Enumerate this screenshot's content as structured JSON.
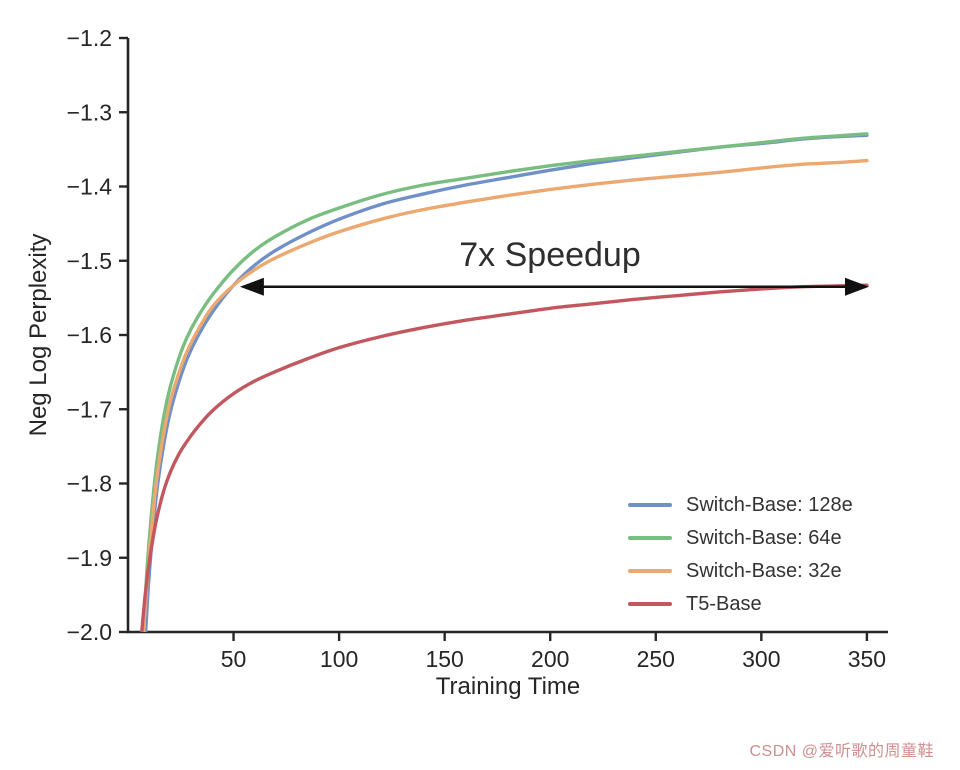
{
  "chart_data": {
    "type": "line",
    "title": "",
    "xlabel": "Training Time",
    "ylabel": "Neg Log Perplexity",
    "xlim": [
      0,
      360
    ],
    "ylim": [
      -2.0,
      -1.2
    ],
    "grid": false,
    "legend_position": "lower right",
    "x_ticks": {
      "values": [
        50,
        100,
        150,
        200,
        250,
        300,
        350
      ],
      "labels": [
        "50",
        "100",
        "150",
        "200",
        "250",
        "300",
        "350"
      ]
    },
    "y_ticks": {
      "values": [
        -1.2,
        -1.3,
        -1.4,
        -1.5,
        -1.6,
        -1.7,
        -1.8,
        -1.9,
        -2.0
      ],
      "labels": [
        "−1.2",
        "−1.3",
        "−1.4",
        "−1.5",
        "−1.6",
        "−1.7",
        "−1.8",
        "−1.9",
        "−2.0"
      ]
    },
    "series": [
      {
        "key": "switch-base-128e",
        "name": "Switch-Base: 128e",
        "color": "#7090c8",
        "x": [
          8,
          9,
          10,
          12,
          14,
          17,
          20,
          24,
          28,
          33,
          40,
          50,
          60,
          70,
          85,
          100,
          120,
          140,
          160,
          180,
          200,
          220,
          240,
          260,
          280,
          300,
          320,
          335,
          350
        ],
        "y": [
          -2.02,
          -1.968,
          -1.924,
          -1.856,
          -1.802,
          -1.746,
          -1.704,
          -1.664,
          -1.632,
          -1.602,
          -1.569,
          -1.533,
          -1.506,
          -1.486,
          -1.463,
          -1.444,
          -1.424,
          -1.41,
          -1.398,
          -1.388,
          -1.378,
          -1.369,
          -1.361,
          -1.354,
          -1.347,
          -1.342,
          -1.336,
          -1.333,
          -1.331
        ]
      },
      {
        "key": "switch-base-64e",
        "name": "Switch-Base: 64e",
        "color": "#7abd80",
        "x": [
          7,
          8,
          9,
          10,
          12,
          14,
          17,
          20,
          24,
          28,
          33,
          40,
          50,
          60,
          70,
          85,
          100,
          120,
          140,
          160,
          180,
          200,
          220,
          240,
          260,
          280,
          300,
          320,
          335,
          350
        ],
        "y": [
          -2.02,
          -1.962,
          -1.916,
          -1.878,
          -1.814,
          -1.764,
          -1.709,
          -1.67,
          -1.632,
          -1.603,
          -1.576,
          -1.546,
          -1.512,
          -1.486,
          -1.467,
          -1.445,
          -1.429,
          -1.411,
          -1.398,
          -1.389,
          -1.38,
          -1.372,
          -1.365,
          -1.359,
          -1.353,
          -1.347,
          -1.341,
          -1.335,
          -1.332,
          -1.329
        ]
      },
      {
        "key": "switch-base-32e",
        "name": "Switch-Base: 32e",
        "color": "#eca86f",
        "x": [
          7,
          8,
          9,
          10,
          12,
          14,
          17,
          20,
          24,
          28,
          33,
          40,
          50,
          60,
          70,
          85,
          100,
          120,
          140,
          160,
          180,
          200,
          220,
          240,
          260,
          280,
          300,
          320,
          335,
          350
        ],
        "y": [
          -2.02,
          -1.974,
          -1.934,
          -1.898,
          -1.836,
          -1.786,
          -1.731,
          -1.69,
          -1.652,
          -1.622,
          -1.594,
          -1.562,
          -1.533,
          -1.512,
          -1.496,
          -1.477,
          -1.461,
          -1.444,
          -1.431,
          -1.421,
          -1.412,
          -1.404,
          -1.397,
          -1.391,
          -1.386,
          -1.381,
          -1.375,
          -1.37,
          -1.368,
          -1.365
        ]
      },
      {
        "key": "t5-base",
        "name": "T5-Base",
        "color": "#c2575f",
        "x": [
          6,
          7,
          8,
          9,
          10,
          12,
          14,
          17,
          20,
          24,
          28,
          33,
          40,
          50,
          60,
          70,
          85,
          100,
          120,
          140,
          160,
          180,
          200,
          220,
          240,
          260,
          280,
          300,
          320,
          335,
          350
        ],
        "y": [
          -2.02,
          -1.984,
          -1.954,
          -1.929,
          -1.907,
          -1.871,
          -1.842,
          -1.809,
          -1.785,
          -1.761,
          -1.743,
          -1.724,
          -1.702,
          -1.679,
          -1.662,
          -1.649,
          -1.632,
          -1.617,
          -1.602,
          -1.59,
          -1.58,
          -1.572,
          -1.564,
          -1.558,
          -1.552,
          -1.547,
          -1.542,
          -1.538,
          -1.535,
          -1.534,
          -1.533
        ]
      }
    ],
    "annotation": {
      "text": "7x Speedup",
      "arrow_x_start": 53,
      "arrow_x_end": 351,
      "arrow_y": -1.535,
      "text_x": 197,
      "text_y": -1.505,
      "arrow_color": "#111111"
    },
    "axis_color": "#262626"
  },
  "watermark": {
    "text": "CSDN @爱听歌的周童鞋",
    "color": "#cf8f8f"
  }
}
